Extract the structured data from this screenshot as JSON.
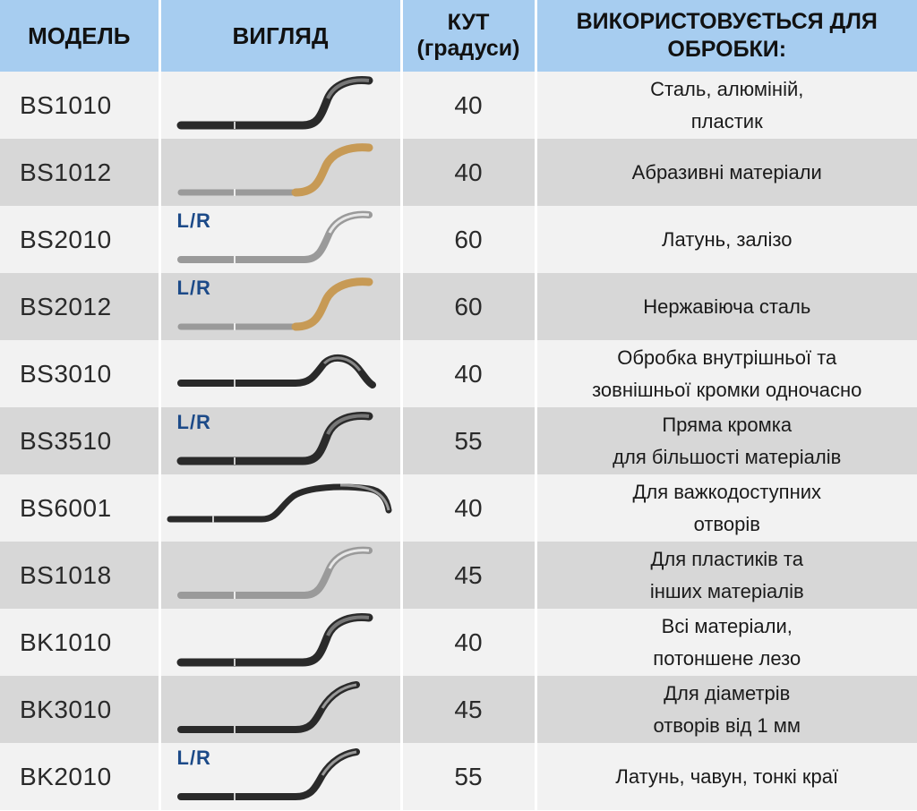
{
  "headers": {
    "model": "МОДЕЛЬ",
    "look": "ВИГЛЯД",
    "angle_line1": "КУТ",
    "angle_line2": "(градуси)",
    "use_line1": "ВИКОРИСТОВУЄТЬСЯ ДЛЯ",
    "use_line2": "ОБРОБКИ:"
  },
  "colors": {
    "header_bg": "#a7cdf0",
    "row_light": "#f2f2f2",
    "row_dark": "#d7d7d7",
    "lr_text": "#1c4a88",
    "blade_dark": "#2a2a2a",
    "blade_silver": "#9a9a9a",
    "blade_gold": "#c79a55"
  },
  "rows": [
    {
      "model": "BS1010",
      "angle": "40",
      "use_line1": "Сталь, алюміній,",
      "use_line2": "пластик",
      "lr": "",
      "blade": "dark-hook-blade"
    },
    {
      "model": "BS1012",
      "angle": "40",
      "use_line1": "Абразивні матеріали",
      "use_line2": "",
      "lr": "",
      "blade": "gold-hook-blade"
    },
    {
      "model": "BS2010",
      "angle": "60",
      "use_line1": "Латунь, залізо",
      "use_line2": "",
      "lr": "L/R",
      "blade": "silver-hook-blade"
    },
    {
      "model": "BS2012",
      "angle": "60",
      "use_line1": "Нержавіюча сталь",
      "use_line2": "",
      "lr": "L/R",
      "blade": "gold-hook-blade"
    },
    {
      "model": "BS3010",
      "angle": "40",
      "use_line1": "Обробка внутрішньої та",
      "use_line2": "зовнішньої кромки одночасно",
      "lr": "",
      "blade": "double-edge-blade"
    },
    {
      "model": "BS3510",
      "angle": "55",
      "use_line1": "Пряма кромка",
      "use_line2": "для більшості матеріалів",
      "lr": "L/R",
      "blade": "dark-hook-blade"
    },
    {
      "model": "BS6001",
      "angle": "40",
      "use_line1": "Для важкодоступних",
      "use_line2": "отворів",
      "lr": "",
      "blade": "long-reach-blade"
    },
    {
      "model": "BS1018",
      "angle": "45",
      "use_line1": "Для пластиків та",
      "use_line2": "інших матеріалів",
      "lr": "",
      "blade": "silver-hook-blade"
    },
    {
      "model": "BK1010",
      "angle": "40",
      "use_line1": "Всі матеріали,",
      "use_line2": "потоншене лезо",
      "lr": "",
      "blade": "dark-hook-blade"
    },
    {
      "model": "BK3010",
      "angle": "45",
      "use_line1": "Для діаметрів",
      "use_line2": "отворів від 1 мм",
      "lr": "",
      "blade": "thin-dark-blade"
    },
    {
      "model": "BK2010",
      "angle": "55",
      "use_line1": "Латунь, чавун, тонкі краї",
      "use_line2": "",
      "lr": "L/R",
      "blade": "thin-dark-blade"
    }
  ]
}
